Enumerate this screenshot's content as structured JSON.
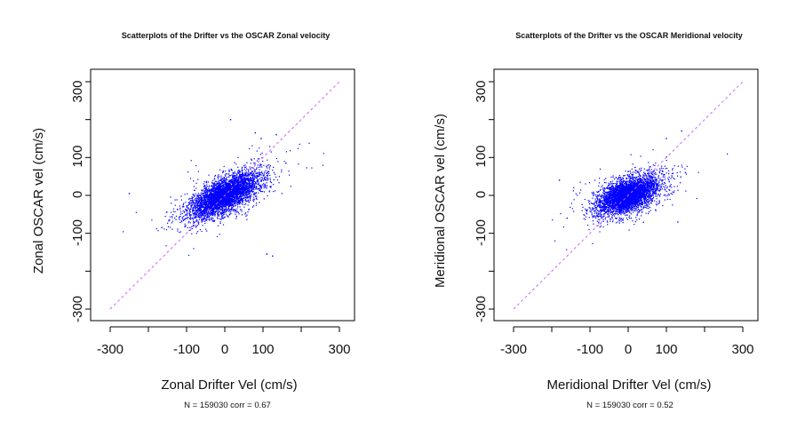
{
  "chart_data": [
    {
      "type": "scatter",
      "title": "Scatterplots of the Drifter vs the OSCAR Zonal velocity",
      "xlabel": "Zonal Drifter Vel (cm/s)",
      "ylabel": "Zonal OSCAR vel (cm/s)",
      "note": "N = 159030 corr = 0.67",
      "xlim": [
        -300,
        300
      ],
      "ylim": [
        -300,
        300
      ],
      "x_ticks": [
        -300,
        -200,
        -100,
        0,
        100,
        200,
        300
      ],
      "y_ticks": [
        -300,
        -200,
        -100,
        0,
        100,
        200,
        300
      ],
      "x_tick_labels": [
        "-300",
        "-100",
        "0",
        "100",
        "300"
      ],
      "y_tick_labels": [
        "-300",
        "-100",
        "0",
        "100",
        "300"
      ],
      "n": 159030,
      "corr": 0.67,
      "reference_line": {
        "slope": 1,
        "intercept": 0,
        "color": "#cc66ff",
        "style": "dashed"
      },
      "point_color": "#0000ff",
      "cloud": {
        "x_mean": 0,
        "y_mean": 0,
        "x_sd": 45,
        "y_sd": 30
      },
      "outliers": [
        {
          "x": -250,
          "y": 5
        },
        {
          "x": 15,
          "y": 200
        },
        {
          "x": 110,
          "y": -155
        },
        {
          "x": 125,
          "y": -160
        },
        {
          "x": 160,
          "y": 85
        },
        {
          "x": 95,
          "y": 150
        },
        {
          "x": 80,
          "y": 165
        },
        {
          "x": 135,
          "y": 160
        },
        {
          "x": -165,
          "y": -85
        }
      ]
    },
    {
      "type": "scatter",
      "title": "Scatterplots of the Drifter vs the OSCAR Meridional velocity",
      "xlabel": "Meridional Drifter Vel (cm/s)",
      "ylabel": "Meridional OSCAR vel (cm/s)",
      "note": "N = 159030 corr = 0.52",
      "xlim": [
        -300,
        300
      ],
      "ylim": [
        -300,
        300
      ],
      "x_ticks": [
        -300,
        -200,
        -100,
        0,
        100,
        200,
        300
      ],
      "y_ticks": [
        -300,
        -200,
        -100,
        0,
        100,
        200,
        300
      ],
      "x_tick_labels": [
        "-300",
        "-100",
        "0",
        "100",
        "300"
      ],
      "y_tick_labels": [
        "-300",
        "-100",
        "0",
        "100",
        "300"
      ],
      "n": 159030,
      "corr": 0.52,
      "reference_line": {
        "slope": 1,
        "intercept": 0,
        "color": "#cc66ff",
        "style": "dashed"
      },
      "point_color": "#0000ff",
      "cloud": {
        "x_mean": 0,
        "y_mean": 0,
        "x_sd": 40,
        "y_sd": 25
      },
      "outliers": [
        {
          "x": -180,
          "y": 40
        },
        {
          "x": 140,
          "y": 170
        },
        {
          "x": 150,
          "y": 60
        },
        {
          "x": -160,
          "y": -60
        },
        {
          "x": 130,
          "y": -70
        },
        {
          "x": 100,
          "y": 150
        }
      ]
    }
  ]
}
